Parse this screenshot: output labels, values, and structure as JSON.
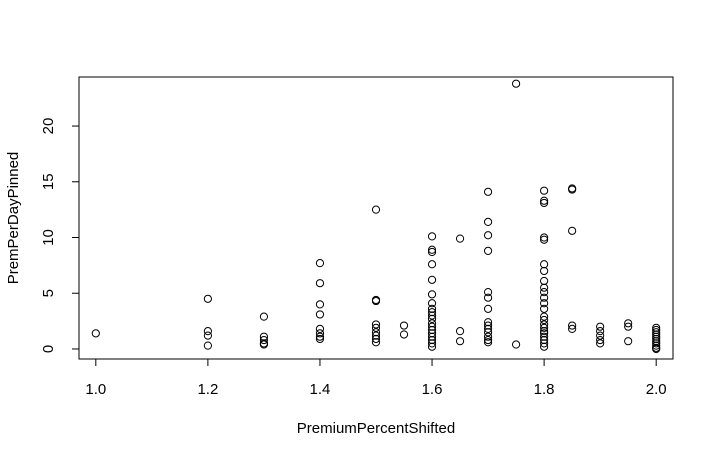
{
  "chart_data": {
    "type": "scatter",
    "title": "",
    "xlabel": "PremiumPercentShifted",
    "ylabel": "PremPerDayPinned",
    "xlim": [
      0.97,
      2.03
    ],
    "ylim": [
      -0.9,
      24.4
    ],
    "xticks": [
      "1.0",
      "1.2",
      "1.4",
      "1.6",
      "1.8",
      "2.0"
    ],
    "yticks": [
      "0",
      "5",
      "10",
      "15",
      "20"
    ],
    "grid": false,
    "points": [
      [
        1.0,
        1.4
      ],
      [
        1.2,
        4.5
      ],
      [
        1.2,
        1.6
      ],
      [
        1.2,
        1.2
      ],
      [
        1.2,
        0.3
      ],
      [
        1.3,
        2.9
      ],
      [
        1.3,
        1.1
      ],
      [
        1.3,
        0.8
      ],
      [
        1.3,
        0.5
      ],
      [
        1.3,
        0.4
      ],
      [
        1.4,
        7.7
      ],
      [
        1.4,
        5.9
      ],
      [
        1.4,
        4.0
      ],
      [
        1.4,
        3.1
      ],
      [
        1.4,
        1.8
      ],
      [
        1.4,
        1.4
      ],
      [
        1.4,
        1.1
      ],
      [
        1.4,
        0.9
      ],
      [
        1.5,
        12.5
      ],
      [
        1.5,
        4.4
      ],
      [
        1.5,
        4.3
      ],
      [
        1.5,
        2.2
      ],
      [
        1.5,
        1.9
      ],
      [
        1.5,
        1.5
      ],
      [
        1.5,
        1.2
      ],
      [
        1.5,
        0.9
      ],
      [
        1.5,
        0.6
      ],
      [
        1.55,
        2.1
      ],
      [
        1.55,
        1.3
      ],
      [
        1.6,
        10.1
      ],
      [
        1.6,
        8.9
      ],
      [
        1.6,
        8.7
      ],
      [
        1.6,
        7.6
      ],
      [
        1.6,
        6.2
      ],
      [
        1.6,
        4.9
      ],
      [
        1.6,
        4.1
      ],
      [
        1.6,
        3.6
      ],
      [
        1.6,
        3.3
      ],
      [
        1.6,
        3.0
      ],
      [
        1.6,
        2.7
      ],
      [
        1.6,
        2.3
      ],
      [
        1.6,
        2.0
      ],
      [
        1.6,
        1.7
      ],
      [
        1.6,
        1.4
      ],
      [
        1.6,
        1.1
      ],
      [
        1.6,
        0.8
      ],
      [
        1.6,
        0.5
      ],
      [
        1.6,
        0.2
      ],
      [
        1.65,
        9.9
      ],
      [
        1.65,
        1.6
      ],
      [
        1.65,
        0.7
      ],
      [
        1.7,
        14.1
      ],
      [
        1.7,
        11.4
      ],
      [
        1.7,
        10.2
      ],
      [
        1.7,
        8.8
      ],
      [
        1.7,
        5.1
      ],
      [
        1.7,
        4.6
      ],
      [
        1.7,
        3.6
      ],
      [
        1.7,
        2.4
      ],
      [
        1.7,
        2.1
      ],
      [
        1.7,
        1.8
      ],
      [
        1.7,
        1.5
      ],
      [
        1.7,
        1.1
      ],
      [
        1.7,
        0.8
      ],
      [
        1.7,
        0.6
      ],
      [
        1.75,
        23.8
      ],
      [
        1.75,
        0.4
      ],
      [
        1.8,
        14.2
      ],
      [
        1.8,
        13.3
      ],
      [
        1.8,
        13.1
      ],
      [
        1.8,
        10.0
      ],
      [
        1.8,
        9.8
      ],
      [
        1.8,
        7.6
      ],
      [
        1.8,
        7.0
      ],
      [
        1.8,
        6.1
      ],
      [
        1.8,
        5.5
      ],
      [
        1.8,
        5.1
      ],
      [
        1.8,
        4.6
      ],
      [
        1.8,
        4.1
      ],
      [
        1.8,
        3.6
      ],
      [
        1.8,
        2.9
      ],
      [
        1.8,
        2.6
      ],
      [
        1.8,
        2.2
      ],
      [
        1.8,
        1.9
      ],
      [
        1.8,
        1.6
      ],
      [
        1.8,
        1.4
      ],
      [
        1.8,
        1.1
      ],
      [
        1.8,
        0.8
      ],
      [
        1.8,
        0.5
      ],
      [
        1.8,
        0.2
      ],
      [
        1.85,
        14.4
      ],
      [
        1.85,
        14.3
      ],
      [
        1.85,
        10.6
      ],
      [
        1.85,
        2.1
      ],
      [
        1.85,
        1.8
      ],
      [
        1.9,
        2.0
      ],
      [
        1.9,
        1.6
      ],
      [
        1.9,
        1.2
      ],
      [
        1.9,
        0.8
      ],
      [
        1.9,
        0.5
      ],
      [
        1.95,
        2.3
      ],
      [
        1.95,
        2.0
      ],
      [
        1.95,
        0.7
      ],
      [
        2.0,
        1.9
      ],
      [
        2.0,
        1.7
      ],
      [
        2.0,
        1.5
      ],
      [
        2.0,
        1.3
      ],
      [
        2.0,
        1.1
      ],
      [
        2.0,
        0.9
      ],
      [
        2.0,
        0.7
      ],
      [
        2.0,
        0.5
      ],
      [
        2.0,
        0.3
      ],
      [
        2.0,
        0.1
      ],
      [
        2.0,
        0.0
      ]
    ]
  }
}
